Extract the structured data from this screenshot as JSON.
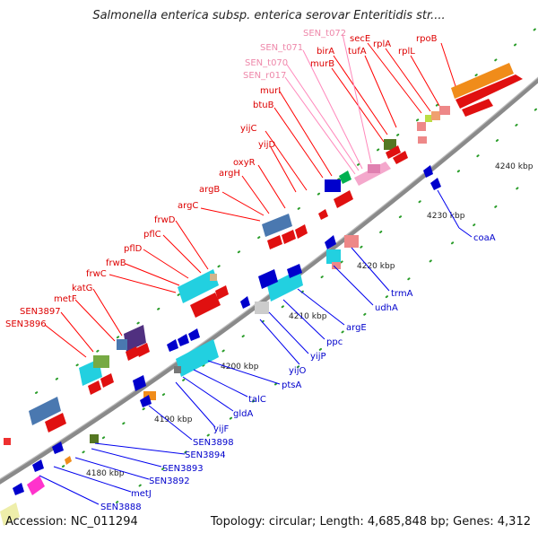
{
  "title": "Salmonella enterica subsp. enterica serovar Enteritidis str....",
  "footer": {
    "accession": "Accession: NC_011294",
    "summary": "Topology: circular; Length: 4,685,848 bp; Genes: 4,312"
  },
  "colors": {
    "forward_label": "#dd0000",
    "reverse_label": "#0000cc",
    "rna_label": "#ee88aa",
    "backbone": "#888888"
  },
  "ticks": [
    "4180 kbp",
    "4190 kbp",
    "4200 kbp",
    "4210 kbp",
    "4220 kbp",
    "4230 kbp",
    "4240 kbp"
  ],
  "forward_genes": [
    "rpoB",
    "secE",
    "rplA",
    "rplL",
    "birA",
    "tufA",
    "murB",
    "murI",
    "btuB",
    "yijC",
    "yijD",
    "oxyR",
    "argH",
    "argB",
    "argC",
    "frwD",
    "pflC",
    "pflD",
    "frwB",
    "frwC",
    "katG",
    "metF",
    "SEN3897",
    "SEN3896"
  ],
  "rna_genes": [
    "SEN_t072",
    "SEN_t071",
    "SEN_t070",
    "SEN_r017"
  ],
  "reverse_genes": [
    "coaA",
    "trmA",
    "udhA",
    "argE",
    "ppc",
    "yijP",
    "yijO",
    "ptsA",
    "talC",
    "gldA",
    "yijF",
    "SEN3898",
    "SEN3894",
    "SEN3893",
    "SEN3892",
    "metJ",
    "SEN3888"
  ]
}
